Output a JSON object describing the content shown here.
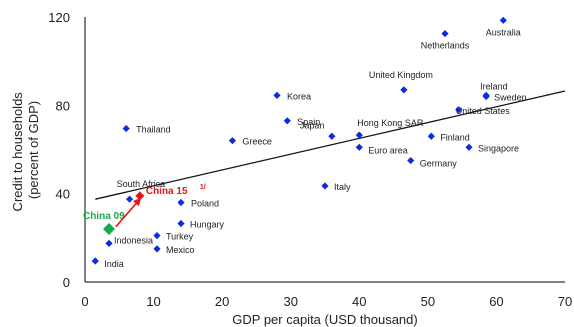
{
  "chart_data": {
    "type": "scatter",
    "xlabel": "GDP per capita (USD thousand)",
    "ylabel_lines": [
      "Credit to households",
      "(percent of GDP)"
    ],
    "xlim": [
      0,
      70
    ],
    "ylim": [
      0,
      120
    ],
    "xticks": [
      0,
      10,
      20,
      30,
      40,
      50,
      60,
      70
    ],
    "yticks": [
      0,
      40,
      80,
      120
    ],
    "grid": false,
    "marker_color": "#0b2be8",
    "trend_line": {
      "color": "#111111",
      "x": [
        1.5,
        70
      ],
      "y": [
        37.5,
        86.5
      ]
    },
    "points": [
      {
        "label": "Netherlands",
        "x": 52.5,
        "y": 112.5
      },
      {
        "label": "Australia",
        "x": 61.0,
        "y": 118.5
      },
      {
        "label": "United Kingdom",
        "x": 46.5,
        "y": 87.0
      },
      {
        "label": "Ireland",
        "x": 58.5,
        "y": 84.5
      },
      {
        "label": "Sweden",
        "x": 58.5,
        "y": 84.0
      },
      {
        "label": "United States",
        "x": 54.5,
        "y": 78.0
      },
      {
        "label": "Korea",
        "x": 28.0,
        "y": 84.5
      },
      {
        "label": "Spain",
        "x": 29.5,
        "y": 73.0
      },
      {
        "label": "Thailand",
        "x": 6.0,
        "y": 69.5
      },
      {
        "label": "Japan",
        "x": 36.0,
        "y": 66.0
      },
      {
        "label": "Hong Kong SAR",
        "x": 40.0,
        "y": 66.5
      },
      {
        "label": "Finland",
        "x": 50.5,
        "y": 66.0
      },
      {
        "label": "Greece",
        "x": 21.5,
        "y": 64.0
      },
      {
        "label": "Euro area",
        "x": 40.0,
        "y": 61.0
      },
      {
        "label": "Singapore",
        "x": 56.0,
        "y": 61.0
      },
      {
        "label": "Germany",
        "x": 47.5,
        "y": 55.0
      },
      {
        "label": "Italy",
        "x": 35.0,
        "y": 43.5
      },
      {
        "label": "South Africa",
        "x": 6.5,
        "y": 37.5
      },
      {
        "label": "Poland",
        "x": 14.0,
        "y": 36.0
      },
      {
        "label": "Hungary",
        "x": 14.0,
        "y": 26.5
      },
      {
        "label": "Turkey",
        "x": 10.5,
        "y": 21.0
      },
      {
        "label": "Indonesia",
        "x": 3.5,
        "y": 17.5
      },
      {
        "label": "Mexico",
        "x": 10.5,
        "y": 15.0
      },
      {
        "label": "India",
        "x": 1.5,
        "y": 9.5
      }
    ],
    "highlights": [
      {
        "label": "China 15",
        "superscript": "1/",
        "x": 8.0,
        "y": 39.0,
        "color": "#e8141b"
      },
      {
        "label": "China 09",
        "superscript": "",
        "x": 3.5,
        "y": 24.0,
        "color": "#1aa84c"
      }
    ],
    "arrow": {
      "from": [
        4.5,
        25.0
      ],
      "to": [
        8.0,
        37.5
      ],
      "color": "#e8141b"
    }
  }
}
